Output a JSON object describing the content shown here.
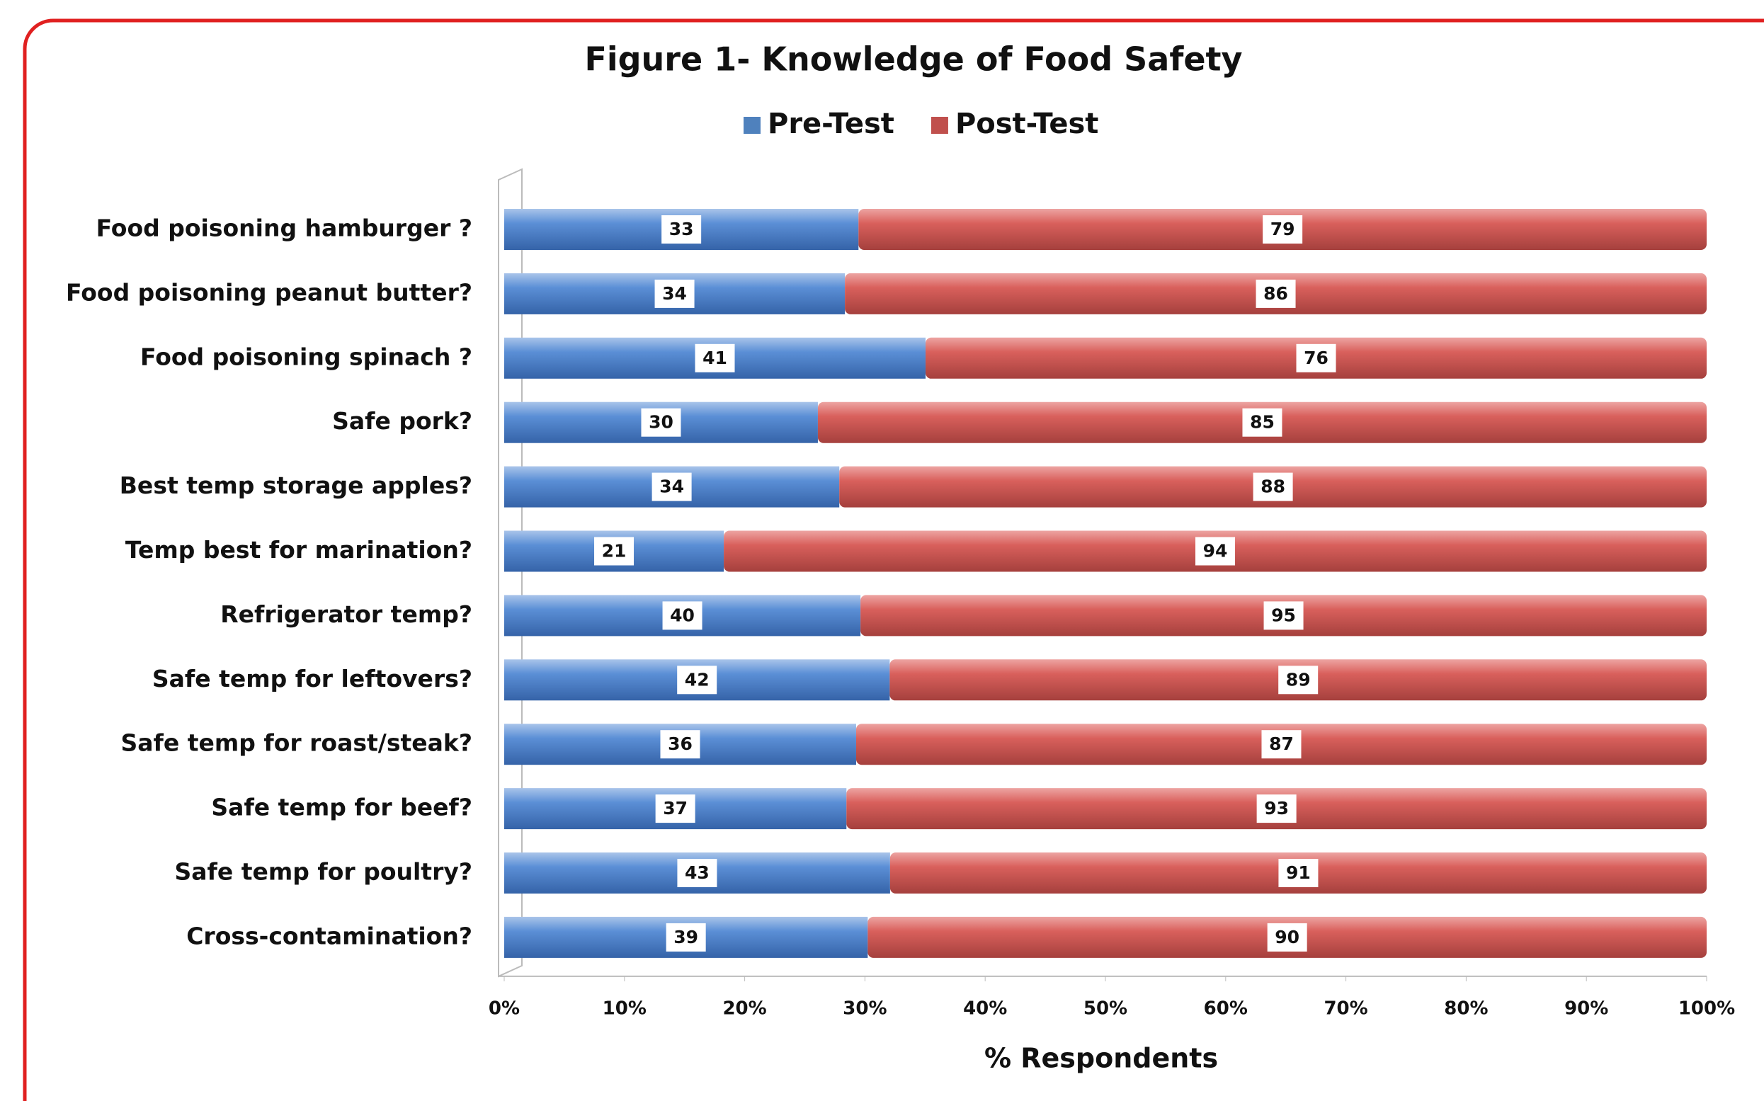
{
  "chart_data": {
    "type": "bar",
    "orientation": "horizontal",
    "stacking": "percent",
    "title": "Figure 1- Knowledge of Food Safety",
    "x_label": "% Respondents",
    "categories": [
      "Food poisoning hamburger ?",
      "Food poisoning peanut butter?",
      "Food poisoning spinach ?",
      "Safe pork?",
      "Best temp storage apples?",
      "Temp best for marination?",
      "Refrigerator temp?",
      "Safe temp for leftovers?",
      "Safe temp for roast/steak?",
      "Safe temp for beef?",
      "Safe temp for poultry?",
      "Cross-contamination?"
    ],
    "series": [
      {
        "name": "Pre-Test",
        "color": "#4f81bd",
        "values": [
          33,
          34,
          41,
          30,
          34,
          21,
          40,
          42,
          36,
          37,
          43,
          39
        ]
      },
      {
        "name": "Post-Test",
        "color": "#c0504d",
        "values": [
          79,
          86,
          76,
          85,
          88,
          94,
          95,
          89,
          87,
          93,
          91,
          90
        ]
      }
    ],
    "xlim": [
      0,
      100
    ],
    "xticks": [
      {
        "value": 0,
        "label": "0%"
      },
      {
        "value": 10,
        "label": "10%"
      },
      {
        "value": 20,
        "label": "20%"
      },
      {
        "value": 30,
        "label": "30%"
      },
      {
        "value": 40,
        "label": "40%"
      },
      {
        "value": 50,
        "label": "50%"
      },
      {
        "value": 60,
        "label": "60%"
      },
      {
        "value": 70,
        "label": "70%"
      },
      {
        "value": 80,
        "label": "80%"
      },
      {
        "value": 90,
        "label": "90%"
      },
      {
        "value": 100,
        "label": "100%"
      }
    ],
    "legend": "top"
  }
}
